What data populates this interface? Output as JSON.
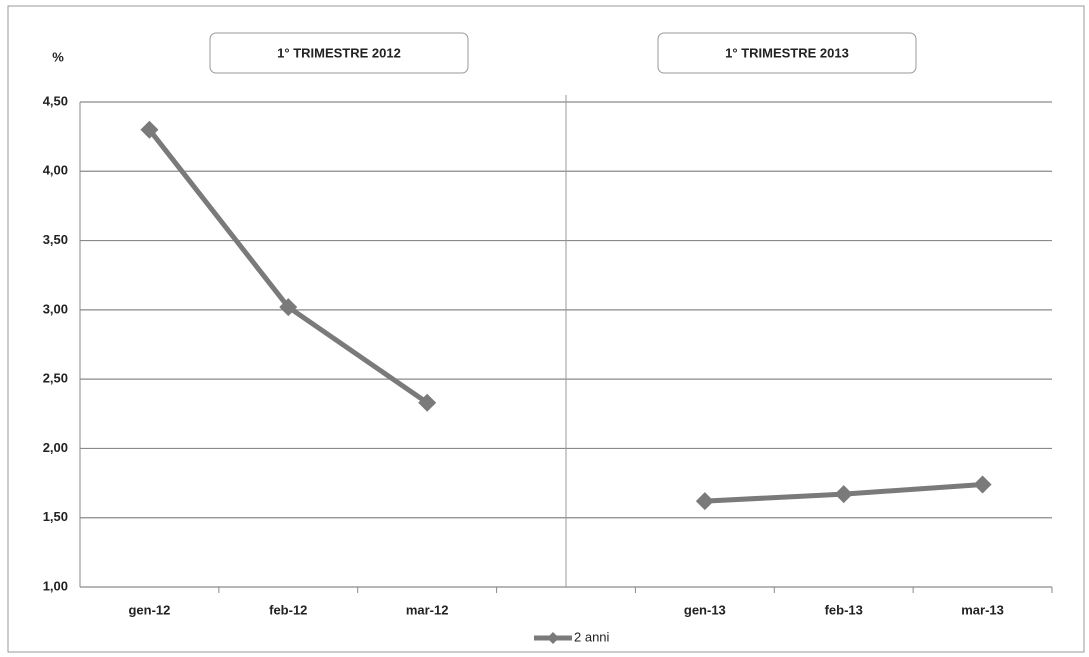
{
  "chart_data": {
    "type": "line",
    "y_label": "%",
    "annotations": [
      "1° TRIMESTRE 2012",
      "1° TRIMESTRE 2013"
    ],
    "categories": [
      "gen-12",
      "feb-12",
      "mar-12",
      null,
      "gen-13",
      "feb-13",
      "mar-13"
    ],
    "series": [
      {
        "name": "2 anni",
        "color": "#7a7a7a",
        "values": [
          4.3,
          3.02,
          2.33,
          null,
          1.62,
          1.67,
          1.74
        ]
      }
    ],
    "ylim": [
      1,
      4.5
    ],
    "yticks": [
      {
        "value": 1,
        "label": "1,00"
      },
      {
        "value": 1.5,
        "label": "1,50"
      },
      {
        "value": 2,
        "label": "2,00"
      },
      {
        "value": 2.5,
        "label": "2,50"
      },
      {
        "value": 3,
        "label": "3,00"
      },
      {
        "value": 3.5,
        "label": "3,50"
      },
      {
        "value": 4,
        "label": "4,00"
      },
      {
        "value": 4.5,
        "label": "4,50"
      }
    ],
    "grid": true
  }
}
